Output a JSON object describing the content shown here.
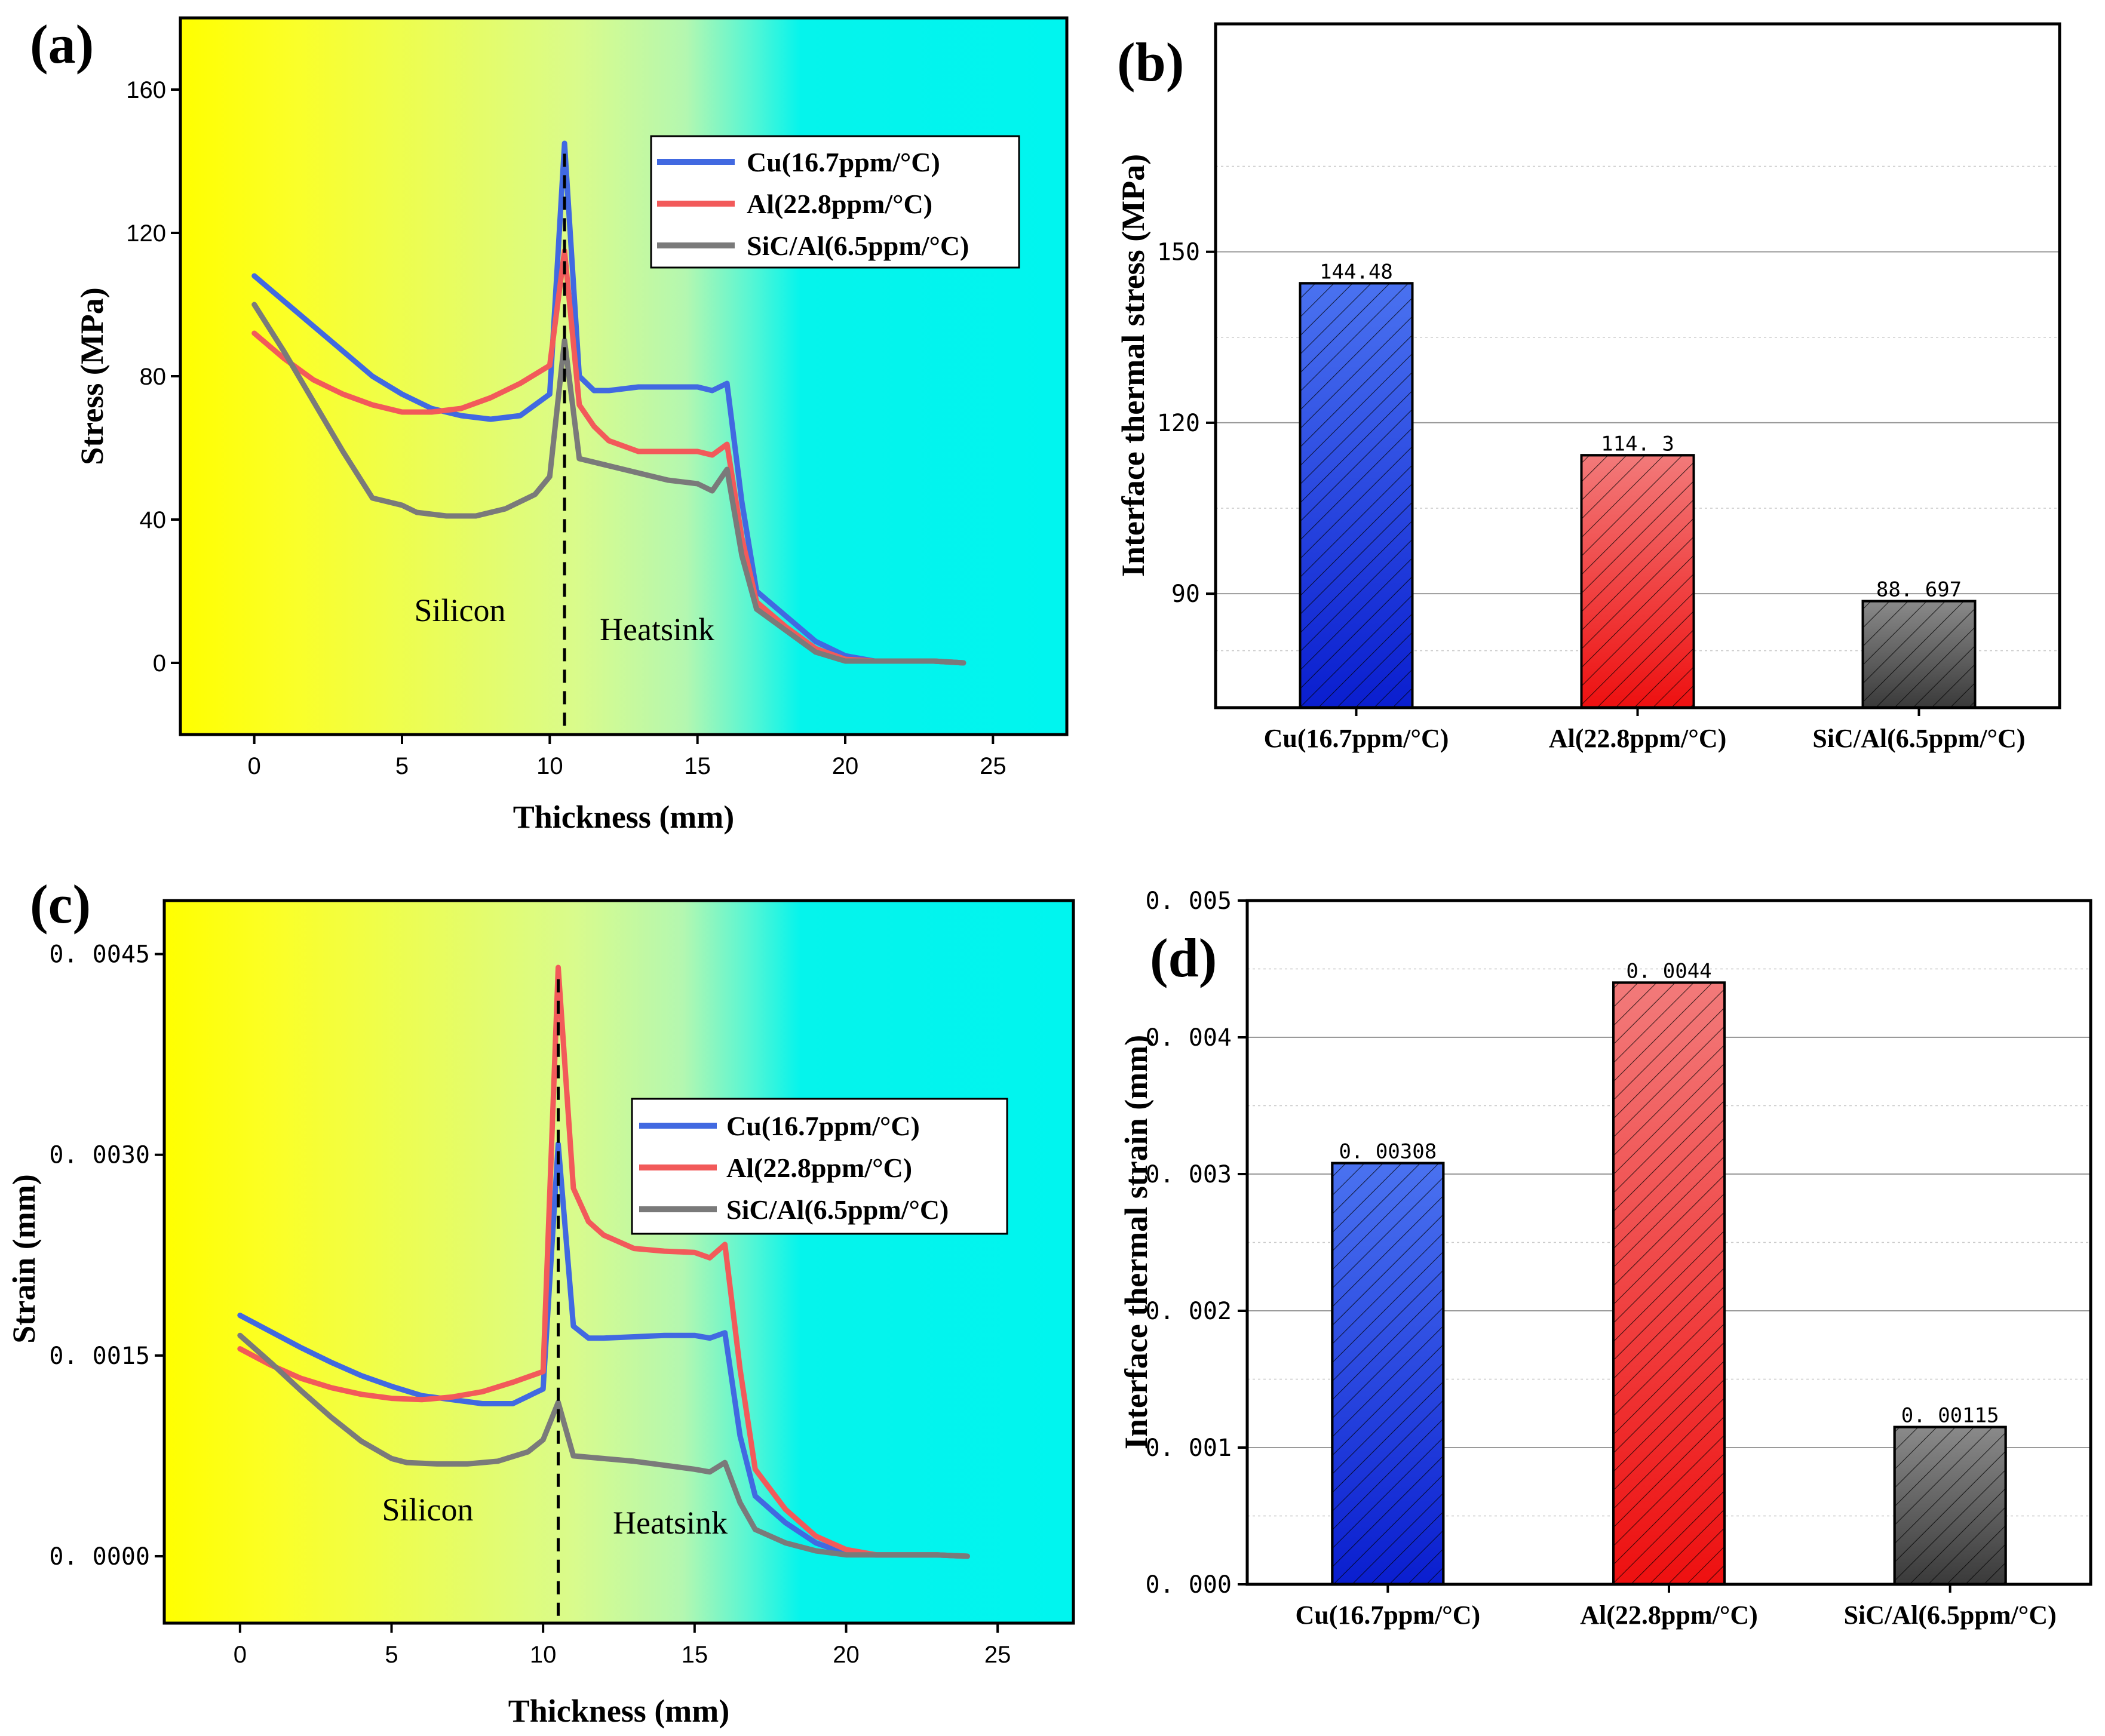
{
  "figure_labels": {
    "a": "(a)",
    "b": "(b)",
    "c": "(c)",
    "d": "(d)"
  },
  "colors": {
    "cu": "#4169e1",
    "al": "#f25a5a",
    "sic": "#7a7a7a",
    "bg_left": "#ffff00",
    "bg_mid": "#c8f7a8",
    "bg_right": "#00f5ef"
  },
  "chart_data": [
    {
      "id": "a",
      "type": "line",
      "xlabel": "Thickness (mm)",
      "ylabel": "Stress (MPa)",
      "xlim": [
        -2.5,
        27.5
      ],
      "ylim": [
        -20,
        180
      ],
      "xticks": [
        "0",
        "5",
        "10",
        "15",
        "20",
        "25"
      ],
      "xtick_values": [
        0,
        5,
        10,
        15,
        20,
        25
      ],
      "yticks": [
        "0",
        "40",
        "80",
        "120",
        "160"
      ],
      "ytick_values": [
        0,
        40,
        80,
        120,
        160
      ],
      "interface_x": 10.5,
      "regions": {
        "left": "Silicon",
        "right": "Heatsink"
      },
      "series": [
        {
          "name": "Cu(16.7ppm/°C)",
          "key": "cu",
          "x": [
            0,
            1,
            2,
            3,
            4,
            5,
            6,
            7,
            8,
            9,
            10,
            10.5,
            11,
            11.5,
            12,
            13,
            14,
            15,
            15.5,
            16,
            16.5,
            17,
            18,
            19,
            20,
            21,
            22,
            23,
            24
          ],
          "y": [
            108,
            101,
            94,
            87,
            80,
            75,
            71,
            69,
            68,
            69,
            75,
            145,
            80,
            76,
            76,
            77,
            77,
            77,
            76,
            78,
            45,
            20,
            13,
            6,
            2,
            0.5,
            0.5,
            0.5,
            0
          ]
        },
        {
          "name": "Al(22.8ppm/°C)",
          "key": "al",
          "x": [
            0,
            1,
            2,
            3,
            4,
            5,
            6,
            7,
            8,
            9,
            10,
            10.5,
            11,
            11.5,
            12,
            13,
            14,
            15,
            15.5,
            16,
            16.5,
            17,
            18,
            19,
            20,
            21,
            22,
            23,
            24
          ],
          "y": [
            92,
            85,
            79,
            75,
            72,
            70,
            70,
            71,
            74,
            78,
            83,
            115,
            72,
            66,
            62,
            59,
            59,
            59,
            58,
            61,
            35,
            17,
            10,
            4,
            1,
            0.5,
            0.5,
            0.5,
            0
          ]
        },
        {
          "name": "SiC/Al(6.5ppm/°C)",
          "key": "sic",
          "x": [
            0,
            1,
            2,
            3,
            4,
            5,
            5.5,
            6.5,
            7.5,
            8.5,
            9.5,
            10,
            10.5,
            11,
            12,
            13,
            14,
            15,
            15.5,
            16,
            16.5,
            17,
            18,
            19,
            20,
            21,
            22,
            23,
            24
          ],
          "y": [
            100,
            87,
            73,
            59,
            46,
            44,
            42,
            41,
            41,
            43,
            47,
            52,
            90,
            57,
            55,
            53,
            51,
            50,
            48,
            54,
            30,
            15,
            9,
            3,
            0.5,
            0.5,
            0.5,
            0.5,
            0
          ]
        }
      ]
    },
    {
      "id": "b",
      "type": "bar",
      "ylabel": "Interface thermal stress (MPa)",
      "ylim": [
        70,
        190
      ],
      "yticks": [
        "90",
        "120",
        "150"
      ],
      "ytick_values": [
        90,
        120,
        150
      ],
      "categories": [
        "Cu(16.7ppm/°C)",
        "Al(22.8ppm/°C)",
        "SiC/Al(6.5ppm/°C)"
      ],
      "values": [
        144.48,
        114.3,
        88.697
      ],
      "value_labels": [
        "144.48",
        "114. 3",
        "88. 697"
      ]
    },
    {
      "id": "c",
      "type": "line",
      "xlabel": "Thickness (mm)",
      "ylabel": "Strain (mm)",
      "xlim": [
        -2.5,
        27.5
      ],
      "ylim": [
        -0.0005,
        0.0049
      ],
      "xticks": [
        "0",
        "5",
        "10",
        "15",
        "20",
        "25"
      ],
      "xtick_values": [
        0,
        5,
        10,
        15,
        20,
        25
      ],
      "yticks": [
        "0. 0000",
        "0. 0015",
        "0. 0030",
        "0. 0045"
      ],
      "ytick_values": [
        0,
        0.0015,
        0.003,
        0.0045
      ],
      "interface_x": 10.5,
      "regions": {
        "left": "Silicon",
        "right": "Heatsink"
      },
      "series": [
        {
          "name": "Cu(16.7ppm/°C)",
          "key": "cu",
          "x": [
            0,
            1,
            2,
            3,
            4,
            5,
            6,
            7,
            8,
            9,
            10,
            10.5,
            11,
            11.5,
            12,
            13,
            14,
            15,
            15.5,
            16,
            16.5,
            17,
            18,
            19,
            20,
            21,
            22,
            23,
            24
          ],
          "y": [
            0.0018,
            0.00168,
            0.00156,
            0.00145,
            0.00135,
            0.00127,
            0.0012,
            0.00117,
            0.00114,
            0.00114,
            0.00125,
            0.00308,
            0.00172,
            0.00163,
            0.00163,
            0.00164,
            0.00165,
            0.00165,
            0.00163,
            0.00167,
            0.0009,
            0.00045,
            0.00025,
            0.0001,
            2e-05,
            1e-05,
            1e-05,
            1e-05,
            0
          ]
        },
        {
          "name": "Al(22.8ppm/°C)",
          "key": "al",
          "x": [
            0,
            1,
            2,
            3,
            4,
            5,
            6,
            7,
            8,
            9,
            10,
            10.5,
            11,
            11.5,
            12,
            13,
            14,
            15,
            15.5,
            16,
            16.5,
            17,
            18,
            19,
            20,
            21,
            22,
            23,
            24
          ],
          "y": [
            0.00155,
            0.00143,
            0.00133,
            0.00126,
            0.00121,
            0.00118,
            0.00117,
            0.00119,
            0.00123,
            0.0013,
            0.00138,
            0.0044,
            0.00275,
            0.0025,
            0.0024,
            0.0023,
            0.00228,
            0.00227,
            0.00223,
            0.00233,
            0.0014,
            0.00065,
            0.00035,
            0.00015,
            5e-05,
            1e-05,
            1e-05,
            1e-05,
            0
          ]
        },
        {
          "name": "SiC/Al(6.5ppm/°C)",
          "key": "sic",
          "x": [
            0,
            1,
            2,
            3,
            4,
            5,
            5.5,
            6.5,
            7.5,
            8.5,
            9.5,
            10,
            10.5,
            11,
            12,
            13,
            14,
            15,
            15.5,
            16,
            16.5,
            17,
            18,
            19,
            20,
            21,
            22,
            23,
            24
          ],
          "y": [
            0.00165,
            0.00145,
            0.00124,
            0.00104,
            0.00086,
            0.00073,
            0.0007,
            0.00069,
            0.00069,
            0.00071,
            0.00078,
            0.00087,
            0.00115,
            0.00075,
            0.00073,
            0.00071,
            0.00068,
            0.00065,
            0.00063,
            0.0007,
            0.0004,
            0.0002,
            0.0001,
            4e-05,
            1e-05,
            1e-05,
            1e-05,
            1e-05,
            0
          ]
        }
      ]
    },
    {
      "id": "d",
      "type": "bar",
      "ylabel": "Interface thermal strain (mm)",
      "ylim": [
        0,
        0.005
      ],
      "yticks": [
        "0. 000",
        "0. 001",
        "0. 002",
        "0. 003",
        "0. 004",
        "0. 005"
      ],
      "ytick_values": [
        0,
        0.001,
        0.002,
        0.003,
        0.004,
        0.005
      ],
      "categories": [
        "Cu(16.7ppm/°C)",
        "Al(22.8ppm/°C)",
        "SiC/Al(6.5ppm/°C)"
      ],
      "values": [
        0.00308,
        0.0044,
        0.00115
      ],
      "value_labels": [
        "0. 00308",
        "0. 0044",
        "0. 00115"
      ]
    }
  ]
}
